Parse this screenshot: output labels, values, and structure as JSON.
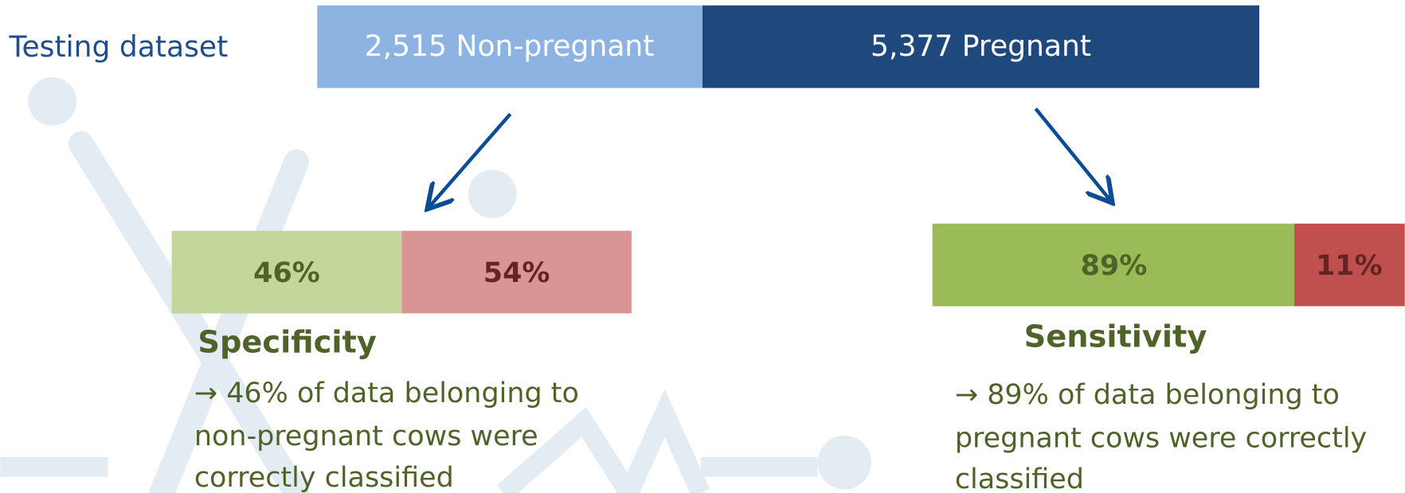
{
  "header": {
    "title": "Testing dataset"
  },
  "dataset": {
    "segments": [
      "2,515 Non-pregnant",
      "5,377 Pregnant"
    ]
  },
  "panels": [
    {
      "bars": [
        "46%",
        "54%"
      ],
      "title": "Specificity",
      "lines": [
        "→ 46% of data belonging to",
        "non-pregnant cows were",
        "correctly classified"
      ]
    },
    {
      "bars": [
        "89%",
        "11%"
      ],
      "title": "Sensitivity",
      "lines": [
        "→ 89% of data belonging to",
        "pregnant cows were correctly",
        "classified"
      ]
    }
  ]
}
